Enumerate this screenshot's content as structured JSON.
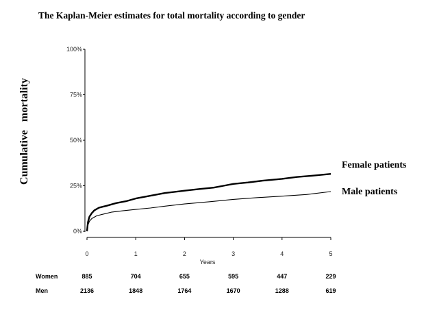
{
  "chart_data": {
    "type": "line",
    "title": "The Kaplan-Meier estimates for total mortality according to gender",
    "xlabel": "Years",
    "ylabel": "Cumulative   mortality",
    "xlim": [
      0,
      5
    ],
    "ylim": [
      0,
      100
    ],
    "x_ticks": [
      "0",
      "1",
      "2",
      "3",
      "4",
      "5"
    ],
    "y_ticks": [
      "0%",
      "25%",
      "50%",
      "75%",
      "100%"
    ],
    "grid": false,
    "series": [
      {
        "name": "Female patients",
        "x": [
          0,
          0.02,
          0.05,
          0.1,
          0.15,
          0.25,
          0.4,
          0.6,
          0.8,
          1.0,
          1.3,
          1.6,
          2.0,
          2.3,
          2.6,
          2.8,
          3.0,
          3.3,
          3.6,
          4.0,
          4.3,
          4.6,
          5.0
        ],
        "y": [
          0,
          5,
          8,
          10,
          11.5,
          13,
          14,
          15.5,
          16.5,
          18,
          19.5,
          21,
          22.3,
          23.2,
          24,
          25,
          26,
          26.8,
          27.8,
          28.8,
          29.8,
          30.5,
          31.5
        ],
        "color": "#000000"
      },
      {
        "name": "Male patients",
        "x": [
          0,
          0.02,
          0.05,
          0.1,
          0.2,
          0.35,
          0.5,
          0.75,
          1.0,
          1.3,
          1.6,
          2.0,
          2.5,
          3.0,
          3.5,
          4.0,
          4.5,
          5.0
        ],
        "y": [
          0,
          3.5,
          5.5,
          7,
          8.5,
          9.5,
          10.5,
          11.3,
          12,
          12.8,
          13.8,
          15,
          16.2,
          17.5,
          18.5,
          19.3,
          20.2,
          21.8
        ],
        "color": "#000000"
      }
    ],
    "risk_table": [
      {
        "label": "Women",
        "values": [
          "885",
          "704",
          "655",
          "595",
          "447",
          "229"
        ]
      },
      {
        "label": "Men",
        "values": [
          "2136",
          "1848",
          "1764",
          "1670",
          "1288",
          "619"
        ]
      }
    ]
  }
}
